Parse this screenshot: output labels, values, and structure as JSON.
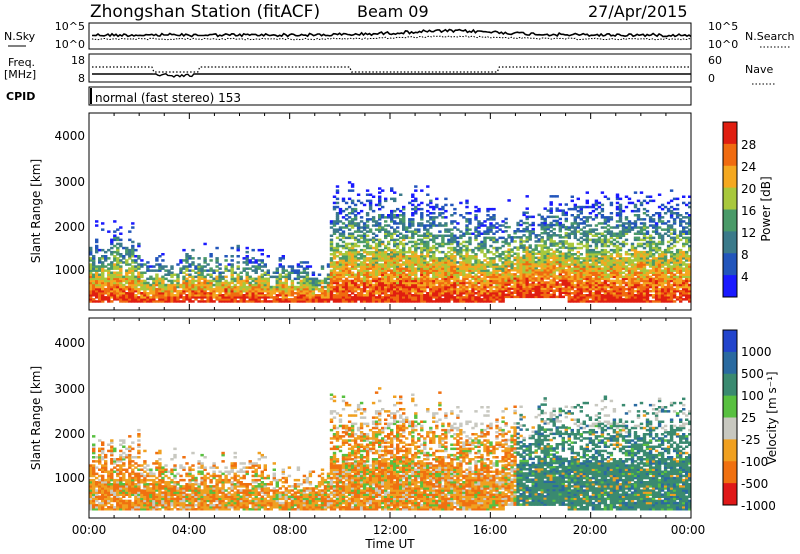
{
  "header": {
    "title": "Zhongshan Station (fitACF)",
    "beam": "Beam 09",
    "date": "27/Apr/2015"
  },
  "noise_panel": {
    "left_label": "N.Sky",
    "right_label": "N.Search",
    "left_ticks": [
      "10^5",
      "10^0"
    ],
    "right_ticks": [
      "10^5",
      "10^0"
    ]
  },
  "freq_panel": {
    "left_label_1": "Freq.",
    "left_label_2": "[MHz]",
    "right_label": "Nave",
    "left_ticks": [
      "18",
      "8"
    ],
    "right_ticks": [
      "60",
      "0"
    ]
  },
  "cpid": {
    "label": "CPID",
    "text": "normal (fast stereo) 153"
  },
  "chart_data": [
    {
      "type": "heatmap",
      "name": "power",
      "ylabel": "Slant Range [km]",
      "ylim": [
        180,
        4500
      ],
      "yticks": [
        "1000",
        "2000",
        "3000",
        "4000"
      ],
      "colorbar_label": "Power [dB]",
      "colorbar_ticks": [
        "4",
        "8",
        "12",
        "16",
        "20",
        "24",
        "28"
      ],
      "colorbar_range": [
        0,
        32
      ],
      "colors": [
        "#1a1aff",
        "#2255bb",
        "#3b7a8a",
        "#4a9a68",
        "#a8c83c",
        "#f4a820",
        "#f06b10",
        "#e01e10"
      ]
    },
    {
      "type": "heatmap",
      "name": "velocity",
      "ylabel": "Slant Range [km]",
      "ylim": [
        180,
        4500
      ],
      "yticks": [
        "1000",
        "2000",
        "3000",
        "4000"
      ],
      "colorbar_label": "Velocity [m s⁻¹]",
      "colorbar_ticks": [
        "1000",
        "500",
        "100",
        "25",
        "-25",
        "-100",
        "-500",
        "-1000"
      ],
      "colors": [
        "#2244cc",
        "#2a6aa0",
        "#3a8a70",
        "#58c040",
        "#c8c8c0",
        "#f0a020",
        "#f07010",
        "#e01818"
      ]
    }
  ],
  "x_axis": {
    "ticks": [
      "00:00",
      "04:00",
      "08:00",
      "12:00",
      "16:00",
      "20:00",
      "00:00"
    ],
    "label": "Time UT"
  }
}
